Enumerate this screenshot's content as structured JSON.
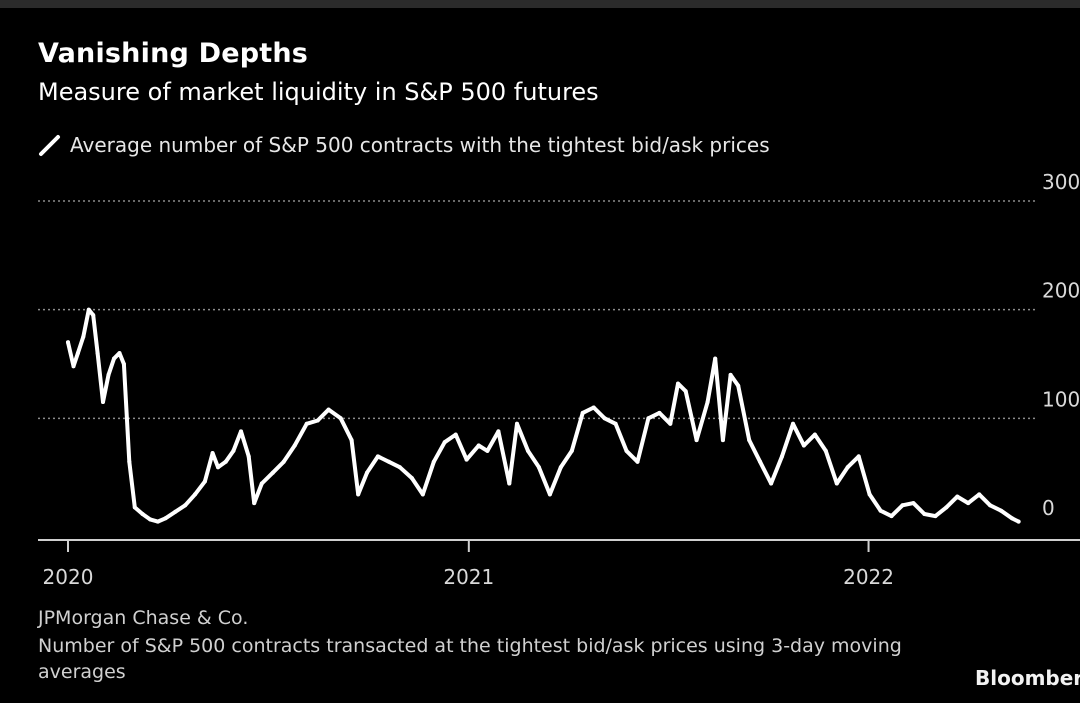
{
  "header": {
    "title": "Vanishing Depths",
    "subtitle": "Measure of market liquidity in S&P 500 futures"
  },
  "legend": {
    "label": "Average number of S&P 500 contracts with the tightest bid/ask prices"
  },
  "footer": {
    "source": "JPMorgan Chase & Co.",
    "note": "Number of S&P 500 contracts transacted at the tightest bid/ask prices using 3-day moving averages",
    "brand": "Bloomber"
  },
  "colors": {
    "background": "#000000",
    "line": "#ffffff",
    "grid": "#8c8c8c",
    "text": "#d9d9d9"
  },
  "chart_data": {
    "type": "line",
    "title": "Vanishing Depths",
    "subtitle": "Measure of market liquidity in S&P 500 futures",
    "xlabel": "",
    "ylabel": "",
    "ylim": [
      0,
      300
    ],
    "xlim": [
      "2020-01-01",
      "2022-06-30"
    ],
    "y_ticks": [
      {
        "value": 0,
        "label": "0"
      },
      {
        "value": 100,
        "label": "100"
      },
      {
        "value": 200,
        "label": "200"
      },
      {
        "value": 300,
        "label": "300"
      }
    ],
    "x_ticks": [
      {
        "value": "2020-01-01",
        "label": "2020"
      },
      {
        "value": "2021-01-01",
        "label": "2021"
      },
      {
        "value": "2022-01-01",
        "label": "2022"
      }
    ],
    "y_axis_position": "right",
    "grid": "horizontal dotted",
    "legend_position": "top-left",
    "series": [
      {
        "name": "Average number of S&P 500 contracts with the tightest bid/ask prices",
        "points": [
          [
            "2020-01-01",
            170
          ],
          [
            "2020-01-06",
            148
          ],
          [
            "2020-01-10",
            160
          ],
          [
            "2020-01-15",
            175
          ],
          [
            "2020-01-20",
            200
          ],
          [
            "2020-01-24",
            195
          ],
          [
            "2020-01-28",
            160
          ],
          [
            "2020-02-02",
            115
          ],
          [
            "2020-02-07",
            140
          ],
          [
            "2020-02-12",
            155
          ],
          [
            "2020-02-17",
            160
          ],
          [
            "2020-02-21",
            150
          ],
          [
            "2020-02-26",
            60
          ],
          [
            "2020-03-02",
            18
          ],
          [
            "2020-03-09",
            12
          ],
          [
            "2020-03-16",
            7
          ],
          [
            "2020-03-23",
            5
          ],
          [
            "2020-03-30",
            8
          ],
          [
            "2020-04-08",
            14
          ],
          [
            "2020-04-17",
            20
          ],
          [
            "2020-04-26",
            30
          ],
          [
            "2020-05-05",
            42
          ],
          [
            "2020-05-12",
            68
          ],
          [
            "2020-05-17",
            55
          ],
          [
            "2020-05-24",
            60
          ],
          [
            "2020-05-31",
            70
          ],
          [
            "2020-06-07",
            88
          ],
          [
            "2020-06-14",
            65
          ],
          [
            "2020-06-19",
            22
          ],
          [
            "2020-06-26",
            40
          ],
          [
            "2020-07-06",
            50
          ],
          [
            "2020-07-16",
            60
          ],
          [
            "2020-07-26",
            75
          ],
          [
            "2020-08-06",
            95
          ],
          [
            "2020-08-16",
            98
          ],
          [
            "2020-08-26",
            108
          ],
          [
            "2020-09-06",
            100
          ],
          [
            "2020-09-16",
            80
          ],
          [
            "2020-09-22",
            30
          ],
          [
            "2020-09-30",
            50
          ],
          [
            "2020-10-10",
            65
          ],
          [
            "2020-10-20",
            60
          ],
          [
            "2020-10-30",
            55
          ],
          [
            "2020-11-10",
            45
          ],
          [
            "2020-11-20",
            30
          ],
          [
            "2020-11-30",
            60
          ],
          [
            "2020-12-10",
            78
          ],
          [
            "2020-12-20",
            85
          ],
          [
            "2020-12-30",
            62
          ],
          [
            "2021-01-10",
            75
          ],
          [
            "2021-01-18",
            70
          ],
          [
            "2021-01-28",
            88
          ],
          [
            "2021-02-07",
            40
          ],
          [
            "2021-02-14",
            95
          ],
          [
            "2021-02-24",
            70
          ],
          [
            "2021-03-06",
            55
          ],
          [
            "2021-03-16",
            30
          ],
          [
            "2021-03-26",
            55
          ],
          [
            "2021-04-05",
            70
          ],
          [
            "2021-04-15",
            105
          ],
          [
            "2021-04-25",
            110
          ],
          [
            "2021-05-05",
            100
          ],
          [
            "2021-05-15",
            95
          ],
          [
            "2021-05-25",
            70
          ],
          [
            "2021-06-04",
            60
          ],
          [
            "2021-06-14",
            100
          ],
          [
            "2021-06-24",
            105
          ],
          [
            "2021-07-04",
            95
          ],
          [
            "2021-07-11",
            132
          ],
          [
            "2021-07-18",
            125
          ],
          [
            "2021-07-28",
            80
          ],
          [
            "2021-08-07",
            115
          ],
          [
            "2021-08-14",
            155
          ],
          [
            "2021-08-21",
            80
          ],
          [
            "2021-08-28",
            140
          ],
          [
            "2021-09-04",
            130
          ],
          [
            "2021-09-14",
            80
          ],
          [
            "2021-09-24",
            60
          ],
          [
            "2021-10-04",
            40
          ],
          [
            "2021-10-14",
            65
          ],
          [
            "2021-10-24",
            95
          ],
          [
            "2021-11-03",
            75
          ],
          [
            "2021-11-13",
            85
          ],
          [
            "2021-11-23",
            70
          ],
          [
            "2021-12-03",
            40
          ],
          [
            "2021-12-13",
            55
          ],
          [
            "2021-12-23",
            65
          ],
          [
            "2022-01-02",
            30
          ],
          [
            "2022-01-12",
            15
          ],
          [
            "2022-01-22",
            10
          ],
          [
            "2022-02-01",
            20
          ],
          [
            "2022-02-11",
            22
          ],
          [
            "2022-02-21",
            12
          ],
          [
            "2022-03-03",
            10
          ],
          [
            "2022-03-13",
            18
          ],
          [
            "2022-03-23",
            28
          ],
          [
            "2022-04-02",
            22
          ],
          [
            "2022-04-12",
            30
          ],
          [
            "2022-04-22",
            20
          ],
          [
            "2022-05-02",
            15
          ],
          [
            "2022-05-12",
            8
          ],
          [
            "2022-05-18",
            5
          ]
        ]
      }
    ]
  }
}
